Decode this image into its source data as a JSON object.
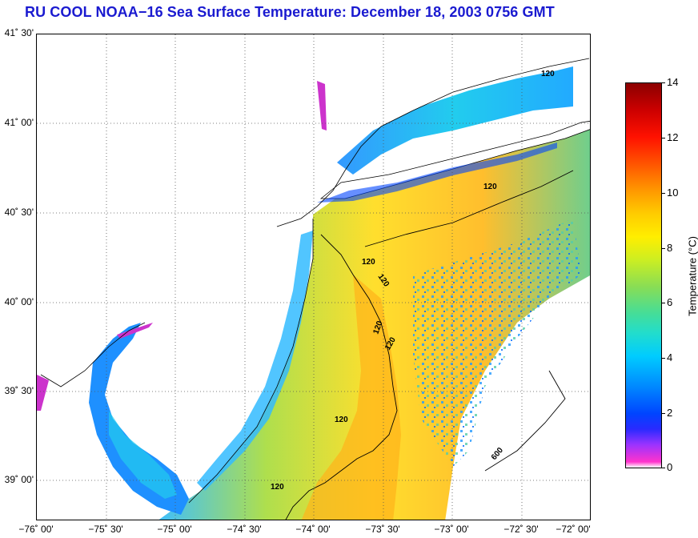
{
  "title": "RU COOL  NOAA−16  Sea Surface Temperature:  December 18, 2003 0756 GMT",
  "map": {
    "lat_labels": [
      "41˚ 30'",
      "41˚ 00'",
      "40˚ 30'",
      "40˚ 00'",
      "39˚ 30'",
      "39˚ 00'"
    ],
    "lon_labels": [
      "−76˚ 00'",
      "−75˚ 30'",
      "−75˚ 00'",
      "−74˚ 30'",
      "−74˚ 00'",
      "−73˚ 30'",
      "−73˚ 00'",
      "−72˚ 30'",
      "−72˚ 00'"
    ],
    "contour_labels": [
      "120",
      "120",
      "120",
      "120",
      "120",
      "120",
      "120",
      "120",
      "600"
    ]
  },
  "colorbar": {
    "title": "Temperature (°C)",
    "ticks": [
      "14",
      "12",
      "10",
      "8",
      "6",
      "4",
      "2",
      "0"
    ]
  }
}
